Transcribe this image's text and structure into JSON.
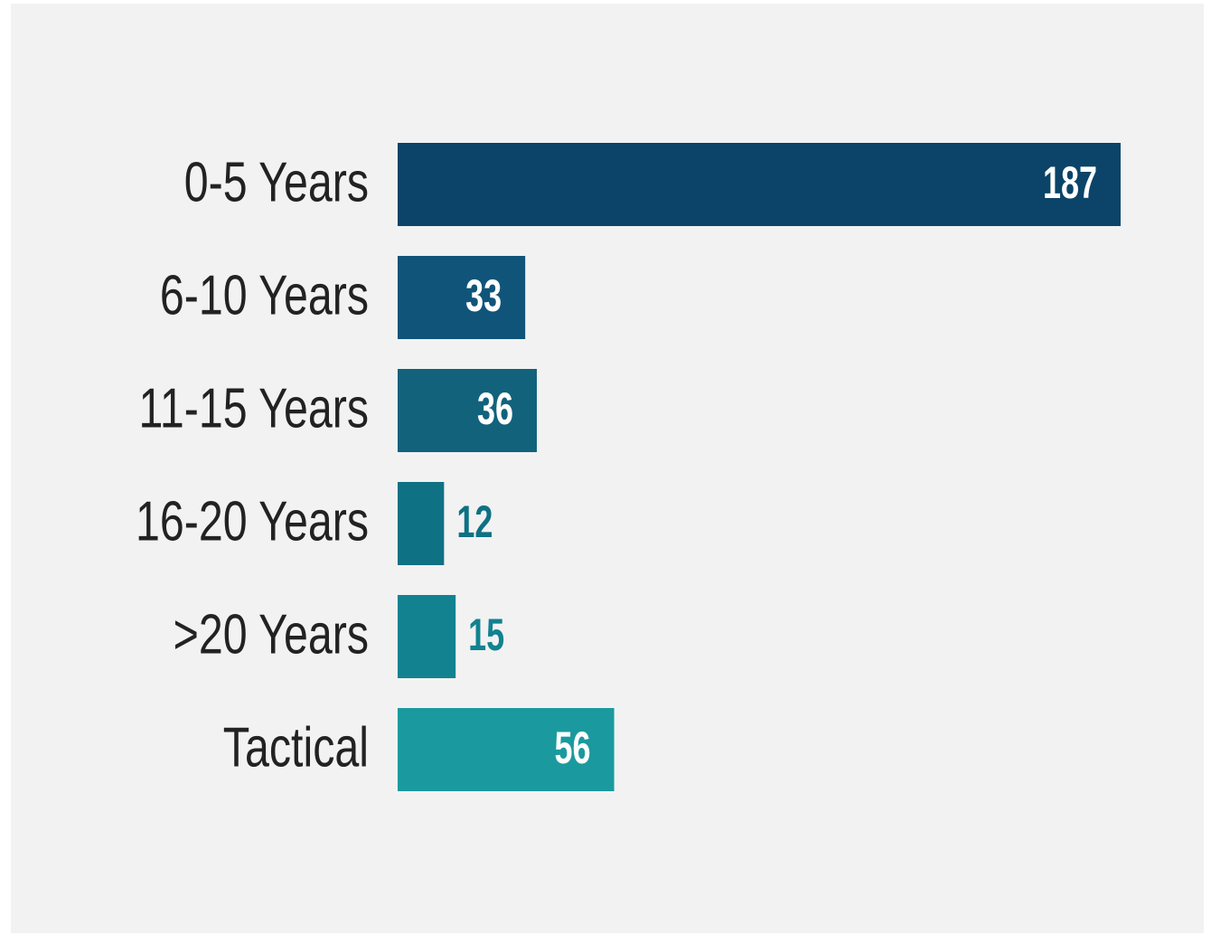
{
  "chart_data": {
    "type": "bar",
    "orientation": "horizontal",
    "categories": [
      "0-5 Years",
      "6-10 Years",
      "11-15 Years",
      "16-20 Years",
      ">20 Years",
      "Tactical"
    ],
    "values": [
      187,
      33,
      36,
      12,
      15,
      56
    ],
    "colors": [
      "#0b4468",
      "#10547a",
      "#12627c",
      "#0e7184",
      "#128290",
      "#1a9a9e"
    ]
  }
}
